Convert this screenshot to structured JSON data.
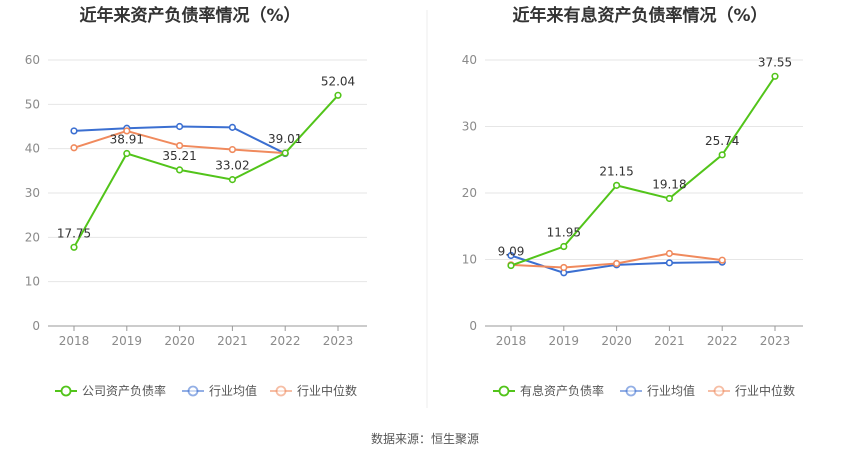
{
  "source_text": "数据来源：恒生聚源",
  "chart_data": [
    {
      "type": "line",
      "title": "近年来资产负债率情况（%）",
      "categories": [
        "2018",
        "2019",
        "2020",
        "2021",
        "2022",
        "2023"
      ],
      "ylim": [
        0,
        60
      ],
      "yticks": [
        "0",
        "10",
        "20",
        "30",
        "40",
        "50",
        "60"
      ],
      "grid": true,
      "legend_position": "bottom",
      "series": [
        {
          "name": "公司资产负债率",
          "color": "#52c41a",
          "values": [
            17.75,
            38.91,
            35.21,
            33.02,
            39.01,
            52.04
          ],
          "labels": [
            "17.75",
            "38.91",
            "35.21",
            "33.02",
            "39.01",
            "52.04"
          ]
        },
        {
          "name": "行业均值",
          "color": "#3b6fd1",
          "values": [
            44.0,
            44.6,
            45.0,
            44.8,
            38.9,
            null
          ]
        },
        {
          "name": "行业中位数",
          "color": "#f08a5d",
          "values": [
            40.2,
            44.0,
            40.7,
            39.8,
            39.0,
            null
          ]
        }
      ]
    },
    {
      "type": "line",
      "title": "近年来有息资产负债率情况（%）",
      "categories": [
        "2018",
        "2019",
        "2020",
        "2021",
        "2022",
        "2023"
      ],
      "ylim": [
        0,
        40
      ],
      "yticks": [
        "0",
        "10",
        "20",
        "30",
        "40"
      ],
      "grid": true,
      "legend_position": "bottom",
      "series": [
        {
          "name": "有息资产负债率",
          "color": "#52c41a",
          "values": [
            9.09,
            11.95,
            21.15,
            19.18,
            25.74,
            37.55
          ],
          "labels": [
            "9.09",
            "11.95",
            "21.15",
            "19.18",
            "25.74",
            "37.55"
          ]
        },
        {
          "name": "行业均值",
          "color": "#3b6fd1",
          "values": [
            10.6,
            8.0,
            9.2,
            9.5,
            9.6,
            null
          ]
        },
        {
          "name": "行业中位数",
          "color": "#f08a5d",
          "values": [
            9.2,
            8.8,
            9.4,
            10.9,
            9.9,
            null
          ]
        }
      ]
    }
  ]
}
